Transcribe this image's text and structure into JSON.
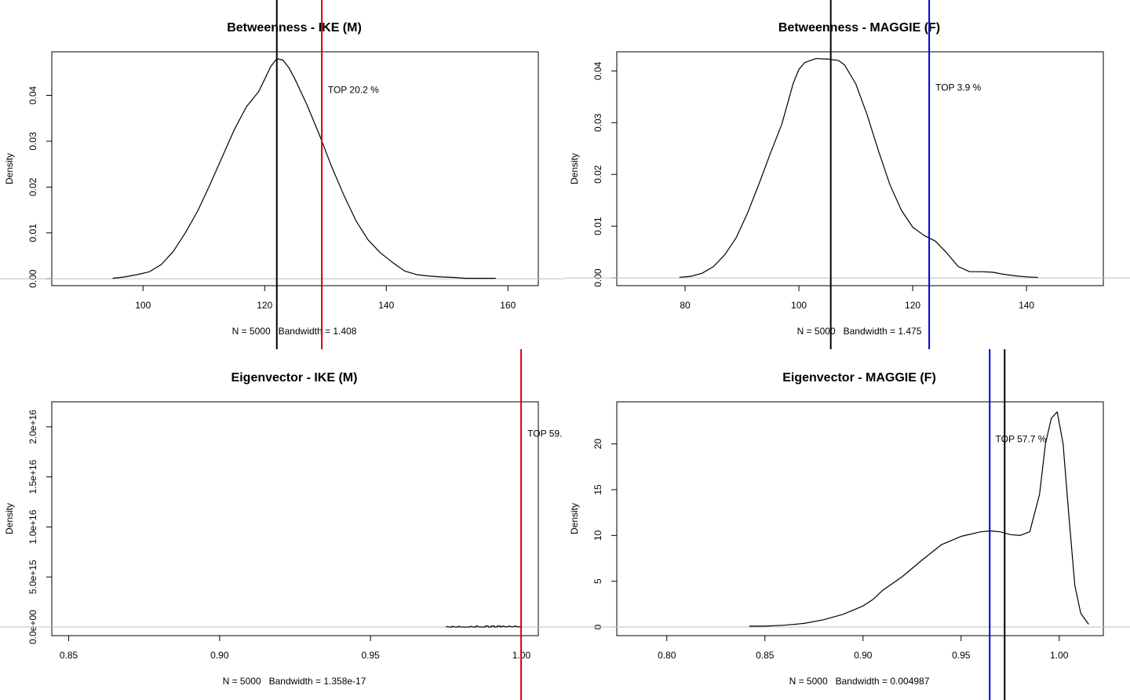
{
  "chart_data": [
    {
      "type": "line",
      "title": "Betweenness - IKE (M)",
      "xlabel": "N = 5000   Bandwidth = 1.408",
      "ylabel": "Density",
      "xlim": [
        85,
        165
      ],
      "ylim": [
        -0.0015,
        0.0495
      ],
      "x_ticks": [
        100,
        120,
        140,
        160
      ],
      "x_tick_labels": [
        "100",
        "120",
        "140",
        "160"
      ],
      "y_ticks": [
        0,
        0.01,
        0.02,
        0.03,
        0.04
      ],
      "y_tick_labels": [
        "0.00",
        "0.01",
        "0.02",
        "0.03",
        "0.04"
      ],
      "series": [
        {
          "x": [
            95,
            97,
            99,
            101,
            103,
            105,
            107,
            109,
            111,
            113,
            115,
            117,
            119,
            120,
            121,
            122,
            123,
            124,
            125,
            127,
            129,
            131,
            133,
            135,
            137,
            139,
            141,
            143,
            145,
            147,
            149,
            151,
            153,
            155,
            158
          ],
          "y": [
            0.0001,
            0.0004,
            0.0009,
            0.0015,
            0.0031,
            0.006,
            0.0101,
            0.0148,
            0.0205,
            0.0265,
            0.0325,
            0.0375,
            0.0408,
            0.0435,
            0.0463,
            0.048,
            0.0477,
            0.046,
            0.0435,
            0.0378,
            0.0314,
            0.0245,
            0.0183,
            0.0127,
            0.0085,
            0.0057,
            0.0036,
            0.0017,
            0.0009,
            0.0006,
            0.0004,
            0.0003,
            0.0001,
            0.0001,
            0.0001
          ],
          "color": "#000000"
        }
      ],
      "hlines": [
        {
          "y": 0,
          "color": "#bebebe"
        }
      ],
      "vlines": [
        {
          "x": 122,
          "color": "#000000"
        },
        {
          "x": 129.4,
          "color": "#dd0000"
        }
      ],
      "annotation": {
        "text": "TOP 20.2 %",
        "x": 130.4,
        "y": 0.0405,
        "color": "#dd0000"
      }
    },
    {
      "type": "line",
      "title": "Betweenness - MAGGIE (F)",
      "xlabel": "N = 5000   Bandwidth = 1.475",
      "ylabel": "Density",
      "xlim": [
        68,
        153.5
      ],
      "ylim": [
        -0.0015,
        0.0437
      ],
      "x_ticks": [
        80,
        100,
        120,
        140
      ],
      "x_tick_labels": [
        "80",
        "100",
        "120",
        "140"
      ],
      "y_ticks": [
        0,
        0.01,
        0.02,
        0.03,
        0.04
      ],
      "y_tick_labels": [
        "0.00",
        "0.01",
        "0.02",
        "0.03",
        "0.04"
      ],
      "series": [
        {
          "x": [
            79,
            81,
            83,
            85,
            87,
            89,
            91,
            93,
            95,
            97,
            99,
            100,
            101,
            103,
            105,
            107,
            108,
            110,
            112,
            114,
            116,
            118,
            120,
            122,
            124,
            126,
            128,
            130,
            132,
            134,
            136,
            138,
            140,
            142
          ],
          "y": [
            0.0001,
            0.0003,
            0.0009,
            0.0022,
            0.0045,
            0.0078,
            0.0126,
            0.0182,
            0.0241,
            0.0297,
            0.0376,
            0.0403,
            0.0416,
            0.0424,
            0.0423,
            0.042,
            0.0412,
            0.0375,
            0.0315,
            0.0245,
            0.018,
            0.0131,
            0.0098,
            0.0082,
            0.0071,
            0.0048,
            0.0022,
            0.0012,
            0.0012,
            0.0011,
            0.0007,
            0.0004,
            0.0002,
            0.0001
          ],
          "color": "#000000"
        }
      ],
      "hlines": [
        {
          "y": 0,
          "color": "#bebebe"
        }
      ],
      "vlines": [
        {
          "x": 105.6,
          "color": "#000000"
        },
        {
          "x": 122.9,
          "color": "#0000cc"
        }
      ],
      "annotation": {
        "text": "TOP 3.9 %",
        "x": 124,
        "y": 0.0362,
        "color": "#0000cc"
      }
    },
    {
      "type": "line",
      "title": "Eigenvector - IKE (M)",
      "xlabel": "N = 5000   Bandwidth = 1.358e-17",
      "ylabel": "Density",
      "xlim": [
        0.8444,
        1.0056
      ],
      "ylim": [
        -860000000000000.0,
        2.25e+16
      ],
      "x_ticks": [
        0.85,
        0.9,
        0.95,
        1.0
      ],
      "x_tick_labels": [
        "0.85",
        "0.90",
        "0.95",
        "1.00"
      ],
      "y_ticks": [
        0,
        5000000000000000.0,
        1e+16,
        1.5e+16,
        2e+16
      ],
      "y_tick_labels": [
        "0.0e+00",
        "5.0e+15",
        "1.0e+16",
        "1.5e+16",
        "2.0e+16"
      ],
      "series": [
        {
          "x": [
            0.975,
            0.9755,
            0.976,
            0.977,
            0.977,
            0.9775,
            0.978,
            0.979,
            0.979,
            0.9795,
            0.98,
            0.983,
            0.983,
            0.9835,
            0.984,
            0.985,
            0.985,
            0.9855,
            0.986,
            0.988,
            0.988,
            0.989,
            0.989,
            0.99,
            0.99,
            0.991,
            0.991,
            0.992,
            0.992,
            0.993,
            0.993,
            0.994,
            0.995,
            0.996,
            0.997,
            0.998,
            0.999,
            1.0
          ],
          "y": [
            0,
            60000000000000.0,
            0,
            0,
            60000000000000.0,
            60000000000000.0,
            0,
            0,
            60000000000000.0,
            60000000000000.0,
            0,
            0,
            60000000000000.0,
            60000000000000.0,
            0,
            0,
            100000000000000.0,
            100000000000000.0,
            0,
            0,
            100000000000000.0,
            100000000000000.0,
            0,
            0,
            100000000000000.0,
            100000000000000.0,
            0,
            0,
            100000000000000.0,
            100000000000000.0,
            0,
            100000000000000.0,
            0,
            100000000000000.0,
            0,
            100000000000000.0,
            0,
            100000000000000.0
          ],
          "color": "#000000"
        }
      ],
      "hlines": [
        {
          "y": 0,
          "color": "#bebebe"
        }
      ],
      "vlines": [
        {
          "x": 0.9999,
          "color": "#dd0000"
        }
      ],
      "annotation": {
        "text": "TOP 59.",
        "x": 1.002,
        "y": 1.9e+16,
        "color": "#dd0000"
      }
    },
    {
      "type": "line",
      "title": "Eigenvector - MAGGIE (F)",
      "xlabel": "N = 5000   Bandwidth = 0.004987",
      "ylabel": "Density",
      "xlim": [
        0.7745,
        1.0225
      ],
      "ylim": [
        -0.94,
        24.6
      ],
      "x_ticks": [
        0.8,
        0.85,
        0.9,
        0.95,
        1.0
      ],
      "x_tick_labels": [
        "0.80",
        "0.85",
        "0.90",
        "0.95",
        "1.00"
      ],
      "y_ticks": [
        0,
        5,
        10,
        15,
        20
      ],
      "y_tick_labels": [
        "0",
        "5",
        "10",
        "15",
        "20"
      ],
      "series": [
        {
          "x": [
            0.842,
            0.85,
            0.86,
            0.87,
            0.88,
            0.89,
            0.9,
            0.905,
            0.91,
            0.92,
            0.93,
            0.94,
            0.95,
            0.96,
            0.965,
            0.97,
            0.975,
            0.98,
            0.985,
            0.99,
            0.993,
            0.996,
            0.999,
            1.002,
            1.005,
            1.008,
            1.011,
            1.015
          ],
          "y": [
            0.1,
            0.1,
            0.2,
            0.4,
            0.8,
            1.4,
            2.3,
            3.0,
            4.0,
            5.5,
            7.3,
            9.0,
            9.9,
            10.4,
            10.5,
            10.4,
            10.1,
            10.0,
            10.4,
            14.5,
            20.0,
            22.8,
            23.5,
            20.0,
            12.0,
            4.5,
            1.5,
            0.3
          ],
          "color": "#000000"
        }
      ],
      "hlines": [
        {
          "y": 0,
          "color": "#bebebe"
        }
      ],
      "vlines": [
        {
          "x": 0.9646,
          "color": "#0000cc"
        },
        {
          "x": 0.9722,
          "color": "#000000"
        }
      ],
      "annotation": {
        "text": "TOP 57.7 %",
        "x": 0.9675,
        "y": 20.2,
        "color": "#0000cc"
      }
    }
  ]
}
